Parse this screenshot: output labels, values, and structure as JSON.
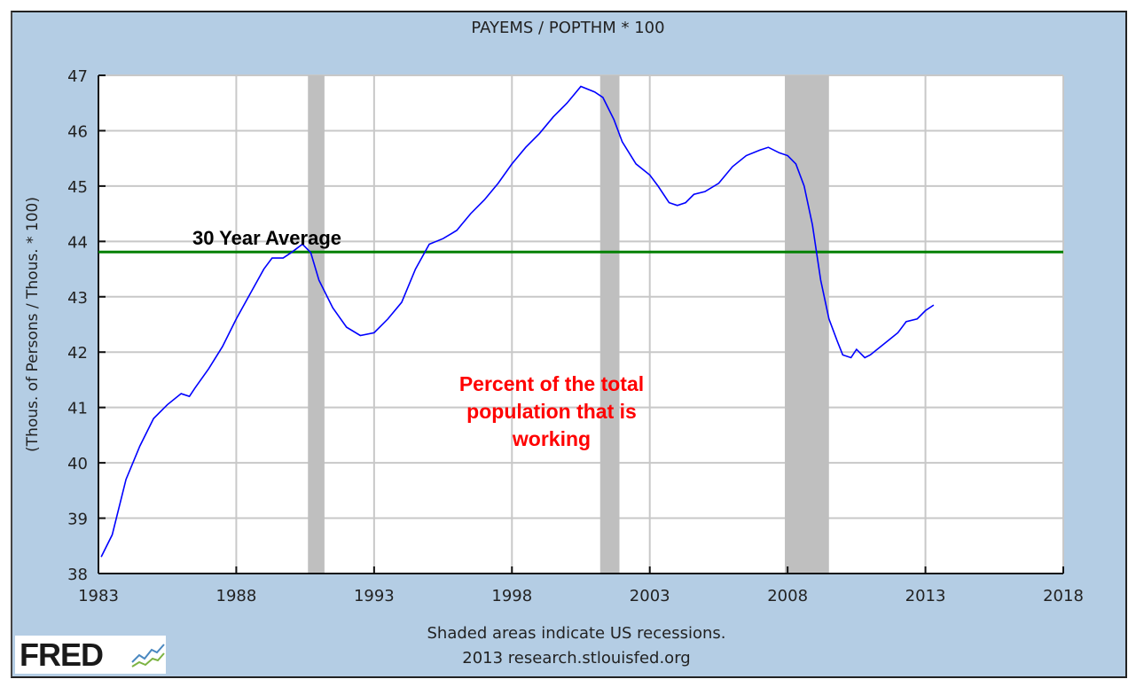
{
  "chart_data": {
    "type": "line",
    "title": "PAYEMS / POPTHM * 100",
    "xlabel": "",
    "ylabel": "(Thous. of Persons / Thous. * 100)",
    "xlim": [
      1983,
      2018
    ],
    "ylim": [
      38,
      47
    ],
    "xticks": [
      1983,
      1988,
      1993,
      1998,
      2003,
      2008,
      2013,
      2018
    ],
    "yticks": [
      38,
      39,
      40,
      41,
      42,
      43,
      44,
      45,
      46,
      47
    ],
    "grid": true,
    "recessions": [
      [
        1990.6,
        1991.2
      ],
      [
        2001.2,
        2001.9
      ],
      [
        2007.9,
        2009.5
      ]
    ],
    "series": [
      {
        "name": "PAYEMS / POPTHM * 100",
        "color": "#0000ff",
        "x": [
          1983.1,
          1983.5,
          1984,
          1984.5,
          1985,
          1985.5,
          1986,
          1986.3,
          1986.5,
          1987,
          1987.5,
          1988,
          1988.5,
          1989,
          1989.3,
          1989.7,
          1990,
          1990.4,
          1990.7,
          1991,
          1991.5,
          1992,
          1992.5,
          1993,
          1993.5,
          1994,
          1994.5,
          1995,
          1995.5,
          1996,
          1996.5,
          1997,
          1997.5,
          1998,
          1998.5,
          1999,
          1999.5,
          2000,
          2000.5,
          2001,
          2001.3,
          2001.7,
          2002,
          2002.5,
          2003,
          2003.3,
          2003.7,
          2004,
          2004.3,
          2004.6,
          2005,
          2005.5,
          2006,
          2006.5,
          2007,
          2007.3,
          2007.7,
          2008,
          2008.3,
          2008.6,
          2008.9,
          2009.2,
          2009.5,
          2009.8,
          2010,
          2010.3,
          2010.5,
          2010.8,
          2011,
          2011.5,
          2012,
          2012.3,
          2012.7,
          2013,
          2013.3
        ],
        "y": [
          38.3,
          38.7,
          39.7,
          40.3,
          40.8,
          41.05,
          41.25,
          41.2,
          41.35,
          41.7,
          42.1,
          42.6,
          43.05,
          43.5,
          43.7,
          43.7,
          43.8,
          43.95,
          43.8,
          43.3,
          42.8,
          42.45,
          42.3,
          42.35,
          42.6,
          42.9,
          43.5,
          43.95,
          44.05,
          44.2,
          44.5,
          44.75,
          45.05,
          45.4,
          45.7,
          45.95,
          46.25,
          46.5,
          46.8,
          46.7,
          46.6,
          46.2,
          45.8,
          45.4,
          45.2,
          45.0,
          44.7,
          44.65,
          44.7,
          44.85,
          44.9,
          45.05,
          45.35,
          45.55,
          45.65,
          45.7,
          45.6,
          45.55,
          45.4,
          45.0,
          44.3,
          43.3,
          42.6,
          42.2,
          41.95,
          41.9,
          42.05,
          41.9,
          41.95,
          42.15,
          42.35,
          42.55,
          42.6,
          42.75,
          42.85
        ]
      },
      {
        "name": "30 Year Average",
        "color": "#008000",
        "value": 43.81
      }
    ],
    "annotations": [
      {
        "text": "30 Year Average",
        "color": "#000000"
      },
      {
        "lines": [
          "Percent of the total",
          "population that is",
          "working"
        ],
        "color": "#ff0000"
      }
    ]
  },
  "footer": {
    "note": "Shaded areas indicate US recessions.",
    "source": "2013 research.stlouisfed.org",
    "logo": "FRED"
  }
}
